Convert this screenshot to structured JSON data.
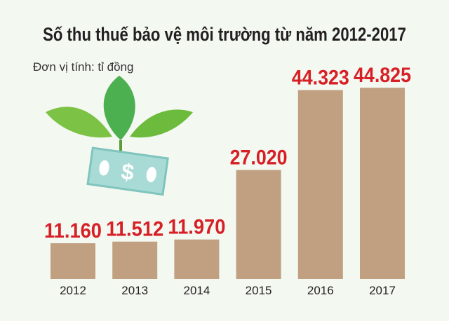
{
  "chart_data": {
    "type": "bar",
    "title": "Số thu thuế bảo vệ môi trường từ năm 2012-2017",
    "subtitle": "Đơn vị tính: tỉ đồng",
    "categories": [
      "2012",
      "2013",
      "2014",
      "2015",
      "2016",
      "2017"
    ],
    "values": [
      11160,
      11512,
      11970,
      27020,
      44323,
      44825
    ],
    "data_labels": [
      "11.160",
      "11.512",
      "11.970",
      "27.020",
      "44.323",
      "44.825"
    ],
    "xlabel": "",
    "ylabel": "",
    "grid": false,
    "colors": {
      "bar": "#c0a080",
      "label": "#d71f26",
      "background": "#f3f8f1"
    },
    "illustration": "plant-with-money-note"
  }
}
